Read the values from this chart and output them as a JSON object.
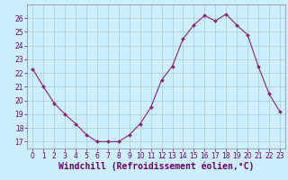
{
  "x": [
    0,
    1,
    2,
    3,
    4,
    5,
    6,
    7,
    8,
    9,
    10,
    11,
    12,
    13,
    14,
    15,
    16,
    17,
    18,
    19,
    20,
    21,
    22,
    23
  ],
  "y": [
    22.3,
    21.0,
    19.8,
    19.0,
    18.3,
    17.5,
    17.0,
    17.0,
    17.0,
    17.5,
    18.3,
    19.5,
    21.5,
    22.5,
    24.5,
    25.5,
    26.2,
    25.8,
    26.3,
    25.5,
    24.8,
    22.5,
    20.5,
    19.2
  ],
  "line_color": "#882277",
  "marker": "D",
  "marker_size": 2,
  "bg_color": "#cceeff",
  "grid_color": "#aacccc",
  "xlabel": "Windchill (Refroidissement éolien,°C)",
  "ylabel": "",
  "ylim": [
    16.5,
    27.0
  ],
  "xlim": [
    -0.5,
    23.5
  ],
  "yticks": [
    17,
    18,
    19,
    20,
    21,
    22,
    23,
    24,
    25,
    26
  ],
  "xticks": [
    0,
    1,
    2,
    3,
    4,
    5,
    6,
    7,
    8,
    9,
    10,
    11,
    12,
    13,
    14,
    15,
    16,
    17,
    18,
    19,
    20,
    21,
    22,
    23
  ],
  "tick_label_size": 5.5,
  "xlabel_size": 7.0,
  "line_width": 0.8
}
